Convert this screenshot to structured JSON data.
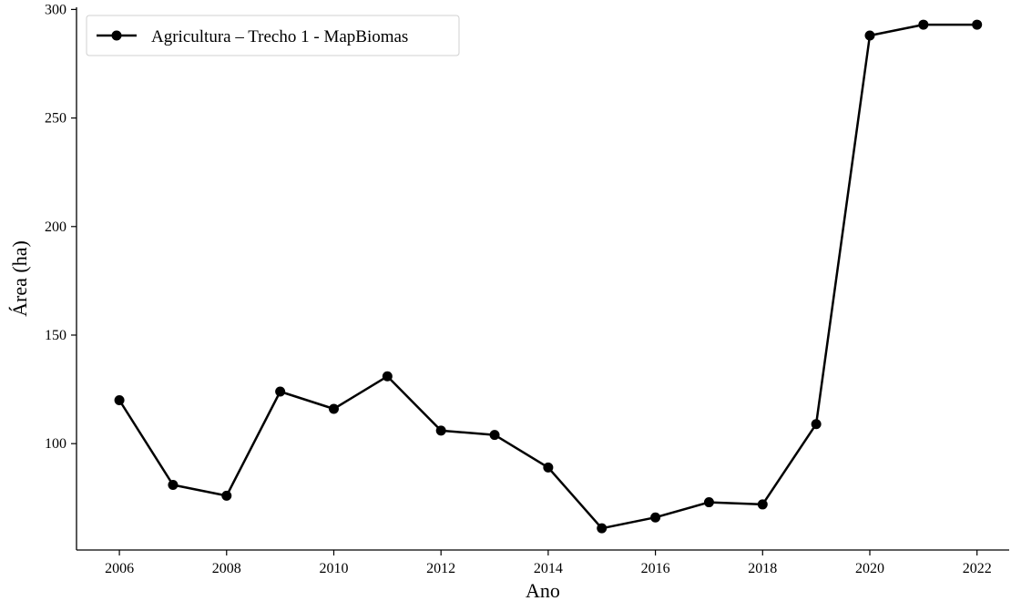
{
  "chart_data": {
    "type": "line",
    "xlabel": "Ano",
    "ylabel": "Área (ha)",
    "xlim": [
      2005.2,
      2022.6
    ],
    "ylim": [
      51,
      301
    ],
    "xticks": [
      2006,
      2008,
      2010,
      2012,
      2014,
      2016,
      2018,
      2020,
      2022
    ],
    "yticks": [
      100,
      150,
      200,
      250,
      300
    ],
    "grid": false,
    "legend_position": "top-left",
    "series": [
      {
        "name": "Agricultura – Trecho 1 - MapBiomas",
        "color": "#000000",
        "marker": "circle",
        "x": [
          2006,
          2007,
          2008,
          2009,
          2010,
          2011,
          2012,
          2013,
          2014,
          2015,
          2016,
          2017,
          2018,
          2019,
          2020,
          2021,
          2022
        ],
        "y": [
          120,
          81,
          76,
          124,
          116,
          131,
          106,
          104,
          89,
          61,
          66,
          73,
          72,
          109,
          288,
          293,
          293
        ]
      }
    ]
  }
}
